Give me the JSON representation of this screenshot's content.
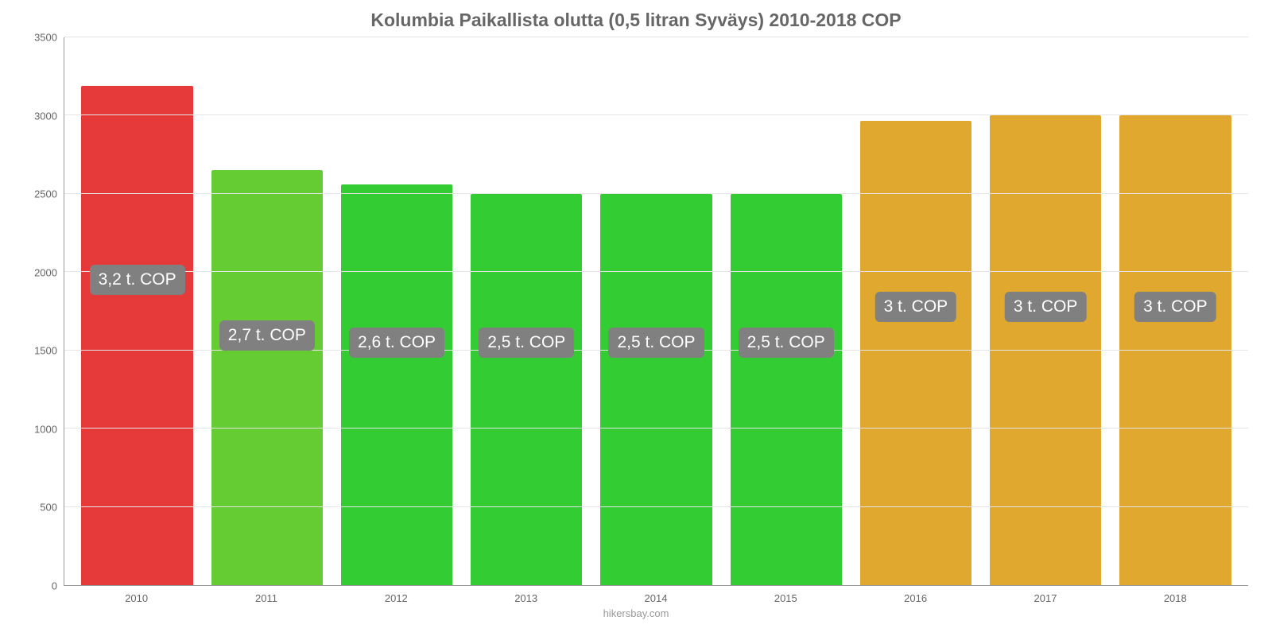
{
  "chart": {
    "type": "bar",
    "title": "Kolumbia Paikallista olutta (0,5 litran Syväys) 2010-2018 COP",
    "title_fontsize": 23,
    "title_color": "#666666",
    "background_color": "#ffffff",
    "grid_color": "#e5e5e5",
    "axis_color": "#999999",
    "tick_color": "#666666",
    "tick_fontsize": 13,
    "credit": "hikersbay.com",
    "credit_color": "#999999",
    "ylim": [
      0,
      3500
    ],
    "ytick_step": 500,
    "yticks": [
      0,
      500,
      1000,
      1500,
      2000,
      2500,
      3000,
      3500
    ],
    "categories": [
      "2010",
      "2011",
      "2012",
      "2013",
      "2014",
      "2015",
      "2016",
      "2017",
      "2018"
    ],
    "values": [
      3190,
      2650,
      2560,
      2500,
      2500,
      2500,
      2965,
      3000,
      3000
    ],
    "bar_colors": [
      "#e63939",
      "#66cc33",
      "#33cc33",
      "#33cc33",
      "#33cc33",
      "#33cc33",
      "#e0a82e",
      "#e0a82e",
      "#e0a82e"
    ],
    "bar_width_pct": 86,
    "value_labels": [
      "3,2 t. COP",
      "2,7 t. COP",
      "2,6 t. COP",
      "2,5 t. COP",
      "2,5 t. COP",
      "2,5 t. COP",
      "3 t. COP",
      "3 t. COP",
      "3 t. COP"
    ],
    "value_label_bg": "#808080",
    "value_label_color": "#ffffff",
    "value_label_fontsize": 21,
    "value_label_y_offsets": [
      0.53,
      0.428,
      0.415,
      0.415,
      0.415,
      0.415,
      0.48,
      0.48,
      0.48
    ]
  }
}
